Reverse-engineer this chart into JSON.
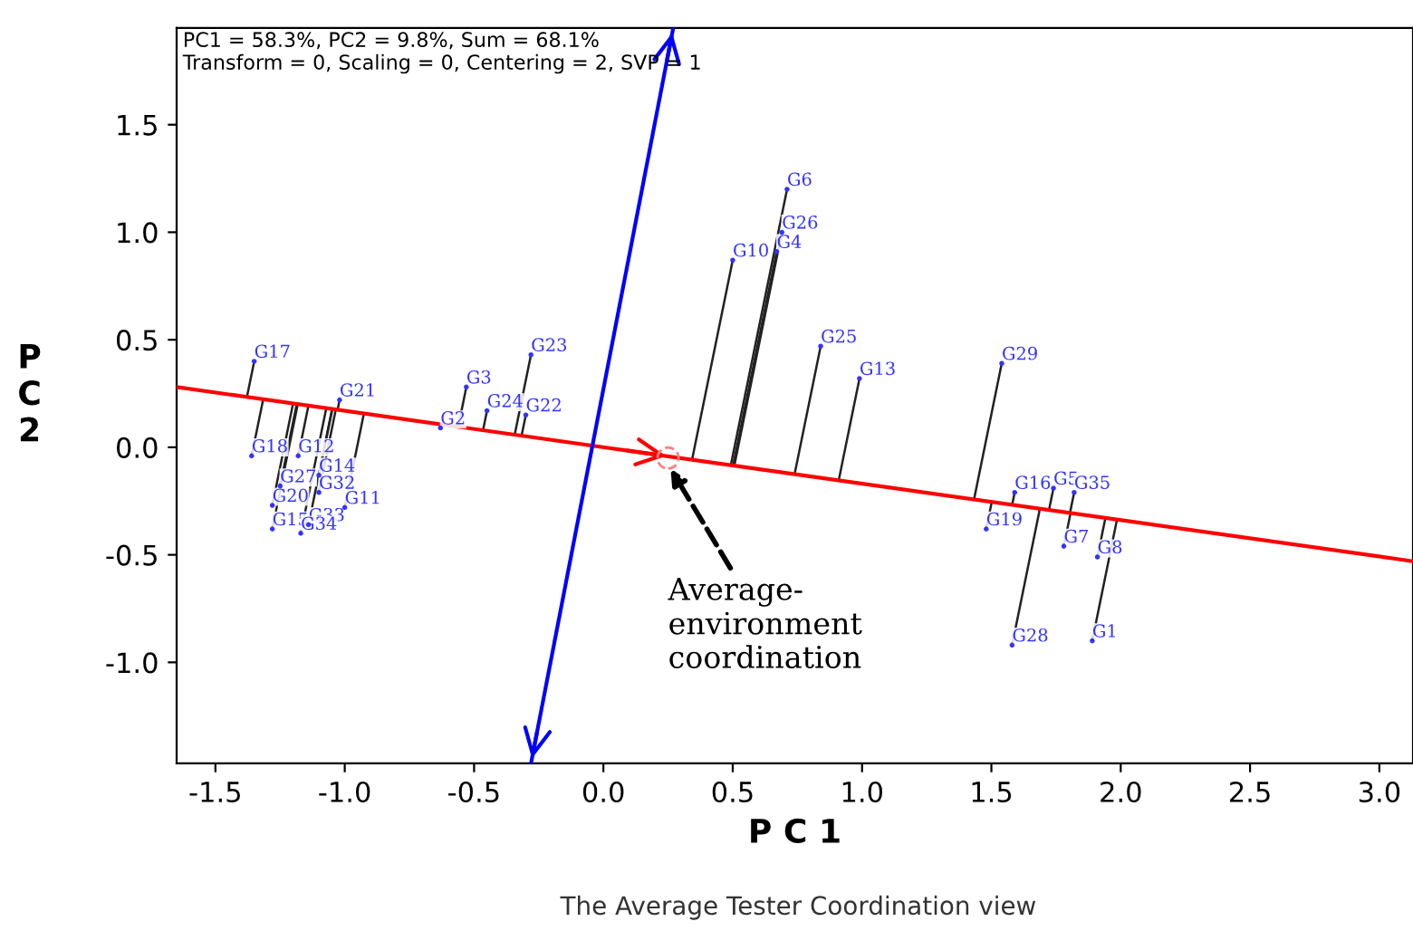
{
  "chart_data": {
    "type": "scatter",
    "xlabel": "P C 1",
    "ylabel": "P C 2",
    "xlim": [
      -1.65,
      3.13
    ],
    "ylim": [
      -1.47,
      1.95
    ],
    "xticks": [
      -1.5,
      {
        "value": -1,
        "label": "-1.0"
      },
      -0.5,
      {
        "value": 0,
        "label": "0.0"
      },
      0.5,
      {
        "value": 1,
        "label": "1.0"
      },
      1.5,
      {
        "value": 2,
        "label": "2.0"
      },
      2.5,
      {
        "value": 3,
        "label": "3.0"
      }
    ],
    "yticks": [
      {
        "value": -1,
        "label": "-1.0"
      },
      -0.5,
      {
        "value": 0,
        "label": "0.0"
      },
      0.5,
      {
        "value": 1,
        "label": "1.0"
      },
      1.5
    ],
    "grid": false,
    "series": [
      {
        "color": "#3333ff",
        "marker": "none",
        "x": [
          0.71,
          0.69,
          0.67,
          0.5,
          0.84,
          0.99,
          1.54,
          1.59,
          1.74,
          1.82,
          1.48,
          1.78,
          1.91,
          1.58,
          1.89,
          -1.35,
          -1.02,
          -0.63,
          -0.53,
          -0.45,
          -0.3,
          -0.28,
          -1.36,
          -1.18,
          -1.1,
          -1.1,
          -1.0,
          -1.25,
          -1.28,
          -1.14,
          -1.28,
          -1.17
        ],
        "values": [
          1.2,
          1.0,
          0.91,
          0.87,
          0.47,
          0.32,
          0.39,
          -0.21,
          -0.19,
          -0.21,
          -0.38,
          -0.46,
          -0.51,
          -0.92,
          -0.9,
          0.4,
          0.22,
          0.09,
          0.28,
          0.17,
          0.15,
          0.43,
          -0.04,
          -0.04,
          -0.13,
          -0.21,
          -0.28,
          -0.18,
          -0.27,
          -0.36,
          -0.38,
          -0.4
        ],
        "value_labels": [
          "G6",
          "G26",
          "G4",
          "G10",
          "G25",
          "G13",
          "G29",
          "G16",
          "G5",
          "G35",
          "G19",
          "G7",
          "G8",
          "G28",
          "G1",
          "G17",
          "G21",
          "G2",
          "G3",
          "G24",
          "G22",
          "G23",
          "G18",
          "G12",
          "G14",
          "G32",
          "G11",
          "G27",
          "G20",
          "G33",
          "G15",
          "G34"
        ]
      },
      {
        "type": "line",
        "color": "#ff0000",
        "x": [
          -1.65,
          3.13
        ],
        "values": [
          0.28,
          -0.53
        ]
      },
      {
        "type": "line",
        "color": "#0000ff",
        "x": [
          0.27,
          -0.28
        ],
        "values": [
          1.95,
          -1.47
        ]
      },
      {
        "color": "#ff8080",
        "marker": "circle",
        "line_style": "dashed",
        "x": [
          0.25
        ],
        "values": [
          -0.05
        ]
      }
    ],
    "annotations": [
      "PC1 = 58.3%, PC2 = 9.8%, Sum = 68.1%\nTransform = 0, Scaling = 0, Centering = 2, SVP = 1",
      {
        "text": "Average-\nenvironment\ncoordination",
        "x": 0.25,
        "y": -0.08
      },
      "The Average Tester Coordination view"
    ]
  }
}
